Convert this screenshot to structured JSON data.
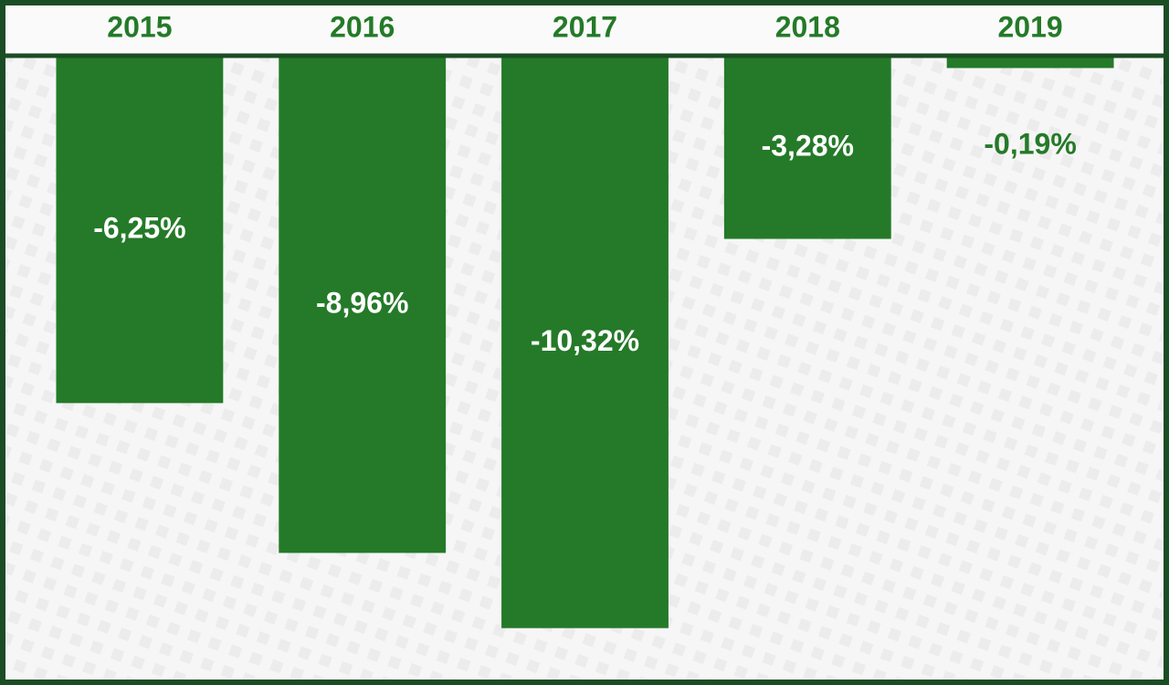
{
  "chart_data": {
    "type": "bar",
    "categories": [
      "2015",
      "2016",
      "2017",
      "2018",
      "2019"
    ],
    "values": [
      -6.25,
      -8.96,
      -10.32,
      -3.28,
      -0.19
    ],
    "value_labels": [
      "-6,25%",
      "-8,96%",
      "-10,32%",
      "-3,28%",
      "-0,19%"
    ],
    "color": "#247a28",
    "ylim": [
      -11.2,
      0
    ]
  }
}
